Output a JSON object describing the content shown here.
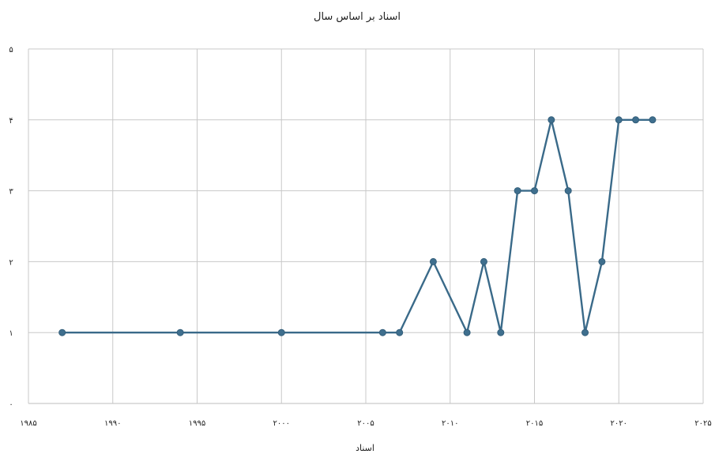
{
  "chart_data": {
    "type": "line",
    "title": "اسناد بر اساس سال",
    "xlabel": "اسناد",
    "ylabel": "",
    "xlim": [
      1985,
      2025
    ],
    "ylim": [
      0,
      5
    ],
    "grid": true,
    "x_ticks": [
      1985,
      1990,
      1995,
      2000,
      2005,
      2010,
      2015,
      2020,
      2025
    ],
    "x_tick_labels": [
      "۱۹۸۵",
      "۱۹۹۰",
      "۱۹۹۵",
      "۲۰۰۰",
      "۲۰۰۵",
      "۲۰۱۰",
      "۲۰۱۵",
      "۲۰۲۰",
      "۲۰۲۵"
    ],
    "y_ticks": [
      0,
      1,
      2,
      3,
      4,
      5
    ],
    "y_tick_labels": [
      "۰",
      "۱",
      "۲",
      "۳",
      "۴",
      "۵"
    ],
    "series_color": "#3a6a89",
    "series": [
      {
        "x": [
          1987,
          1994,
          2000,
          2006,
          2007,
          2009,
          2011,
          2012,
          2013,
          2014,
          2015,
          2016,
          2017,
          2018,
          2019,
          2020,
          2021,
          2022
        ],
        "y": [
          1,
          1,
          1,
          1,
          1,
          2,
          1,
          2,
          1,
          3,
          3,
          4,
          3,
          1,
          2,
          4,
          4,
          4
        ]
      }
    ]
  }
}
